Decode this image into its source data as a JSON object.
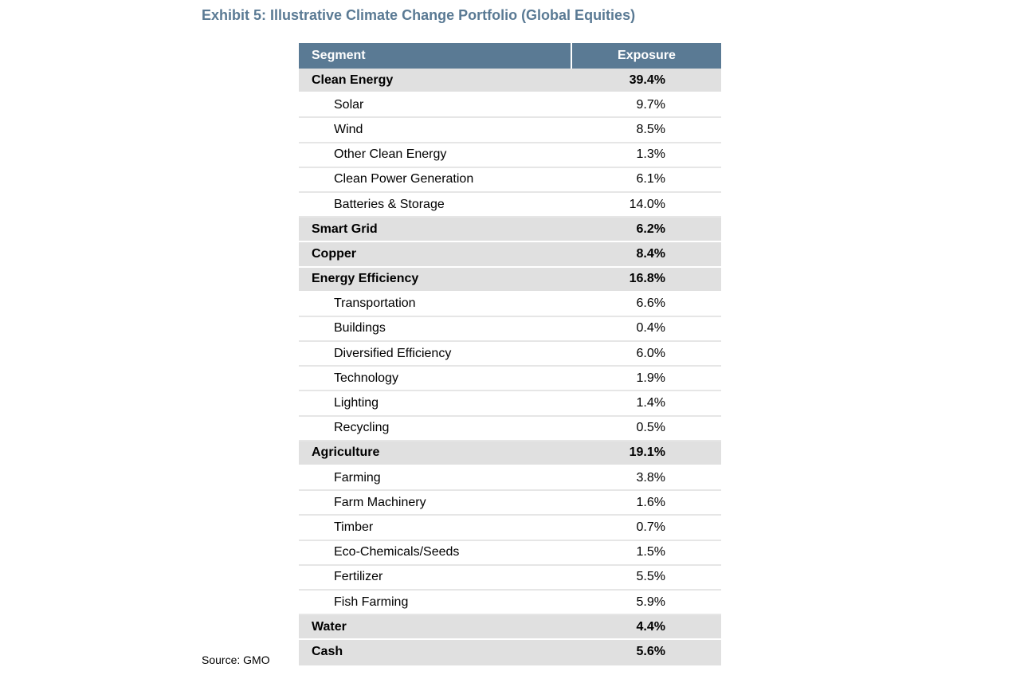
{
  "title": "Exhibit 5: Illustrative Climate Change Portfolio (Global Equities)",
  "table": {
    "headers": {
      "segment": "Segment",
      "exposure": "Exposure"
    },
    "rows": [
      {
        "segment": "Clean Energy",
        "exposure": "39.4%",
        "level": 1
      },
      {
        "segment": "Solar",
        "exposure": "9.7%",
        "level": 2
      },
      {
        "segment": "Wind",
        "exposure": "8.5%",
        "level": 2
      },
      {
        "segment": "Other Clean Energy",
        "exposure": "1.3%",
        "level": 2
      },
      {
        "segment": "Clean Power Generation",
        "exposure": "6.1%",
        "level": 2
      },
      {
        "segment": "Batteries & Storage",
        "exposure": "14.0%",
        "level": 2
      },
      {
        "segment": "Smart Grid",
        "exposure": "6.2%",
        "level": 1
      },
      {
        "segment": "Copper",
        "exposure": "8.4%",
        "level": 1
      },
      {
        "segment": "Energy Efficiency",
        "exposure": "16.8%",
        "level": 1
      },
      {
        "segment": "Transportation",
        "exposure": "6.6%",
        "level": 2
      },
      {
        "segment": "Buildings",
        "exposure": "0.4%",
        "level": 2
      },
      {
        "segment": "Diversified Efficiency",
        "exposure": "6.0%",
        "level": 2
      },
      {
        "segment": "Technology",
        "exposure": "1.9%",
        "level": 2
      },
      {
        "segment": "Lighting",
        "exposure": "1.4%",
        "level": 2
      },
      {
        "segment": "Recycling",
        "exposure": "0.5%",
        "level": 2
      },
      {
        "segment": "Agriculture",
        "exposure": "19.1%",
        "level": 1
      },
      {
        "segment": "Farming",
        "exposure": "3.8%",
        "level": 2
      },
      {
        "segment": "Farm Machinery",
        "exposure": "1.6%",
        "level": 2
      },
      {
        "segment": "Timber",
        "exposure": "0.7%",
        "level": 2
      },
      {
        "segment": "Eco-Chemicals/Seeds",
        "exposure": "1.5%",
        "level": 2
      },
      {
        "segment": "Fertilizer",
        "exposure": "5.5%",
        "level": 2
      },
      {
        "segment": "Fish Farming",
        "exposure": "5.9%",
        "level": 2
      },
      {
        "segment": "Water",
        "exposure": "4.4%",
        "level": 1
      },
      {
        "segment": "Cash",
        "exposure": "5.6%",
        "level": 1
      }
    ]
  },
  "source": "Source: GMO",
  "colors": {
    "header_bg": "#5a7a94",
    "title": "#5a7a94",
    "category_bg": "#e0e0e0",
    "divider": "#e6e6e6"
  }
}
